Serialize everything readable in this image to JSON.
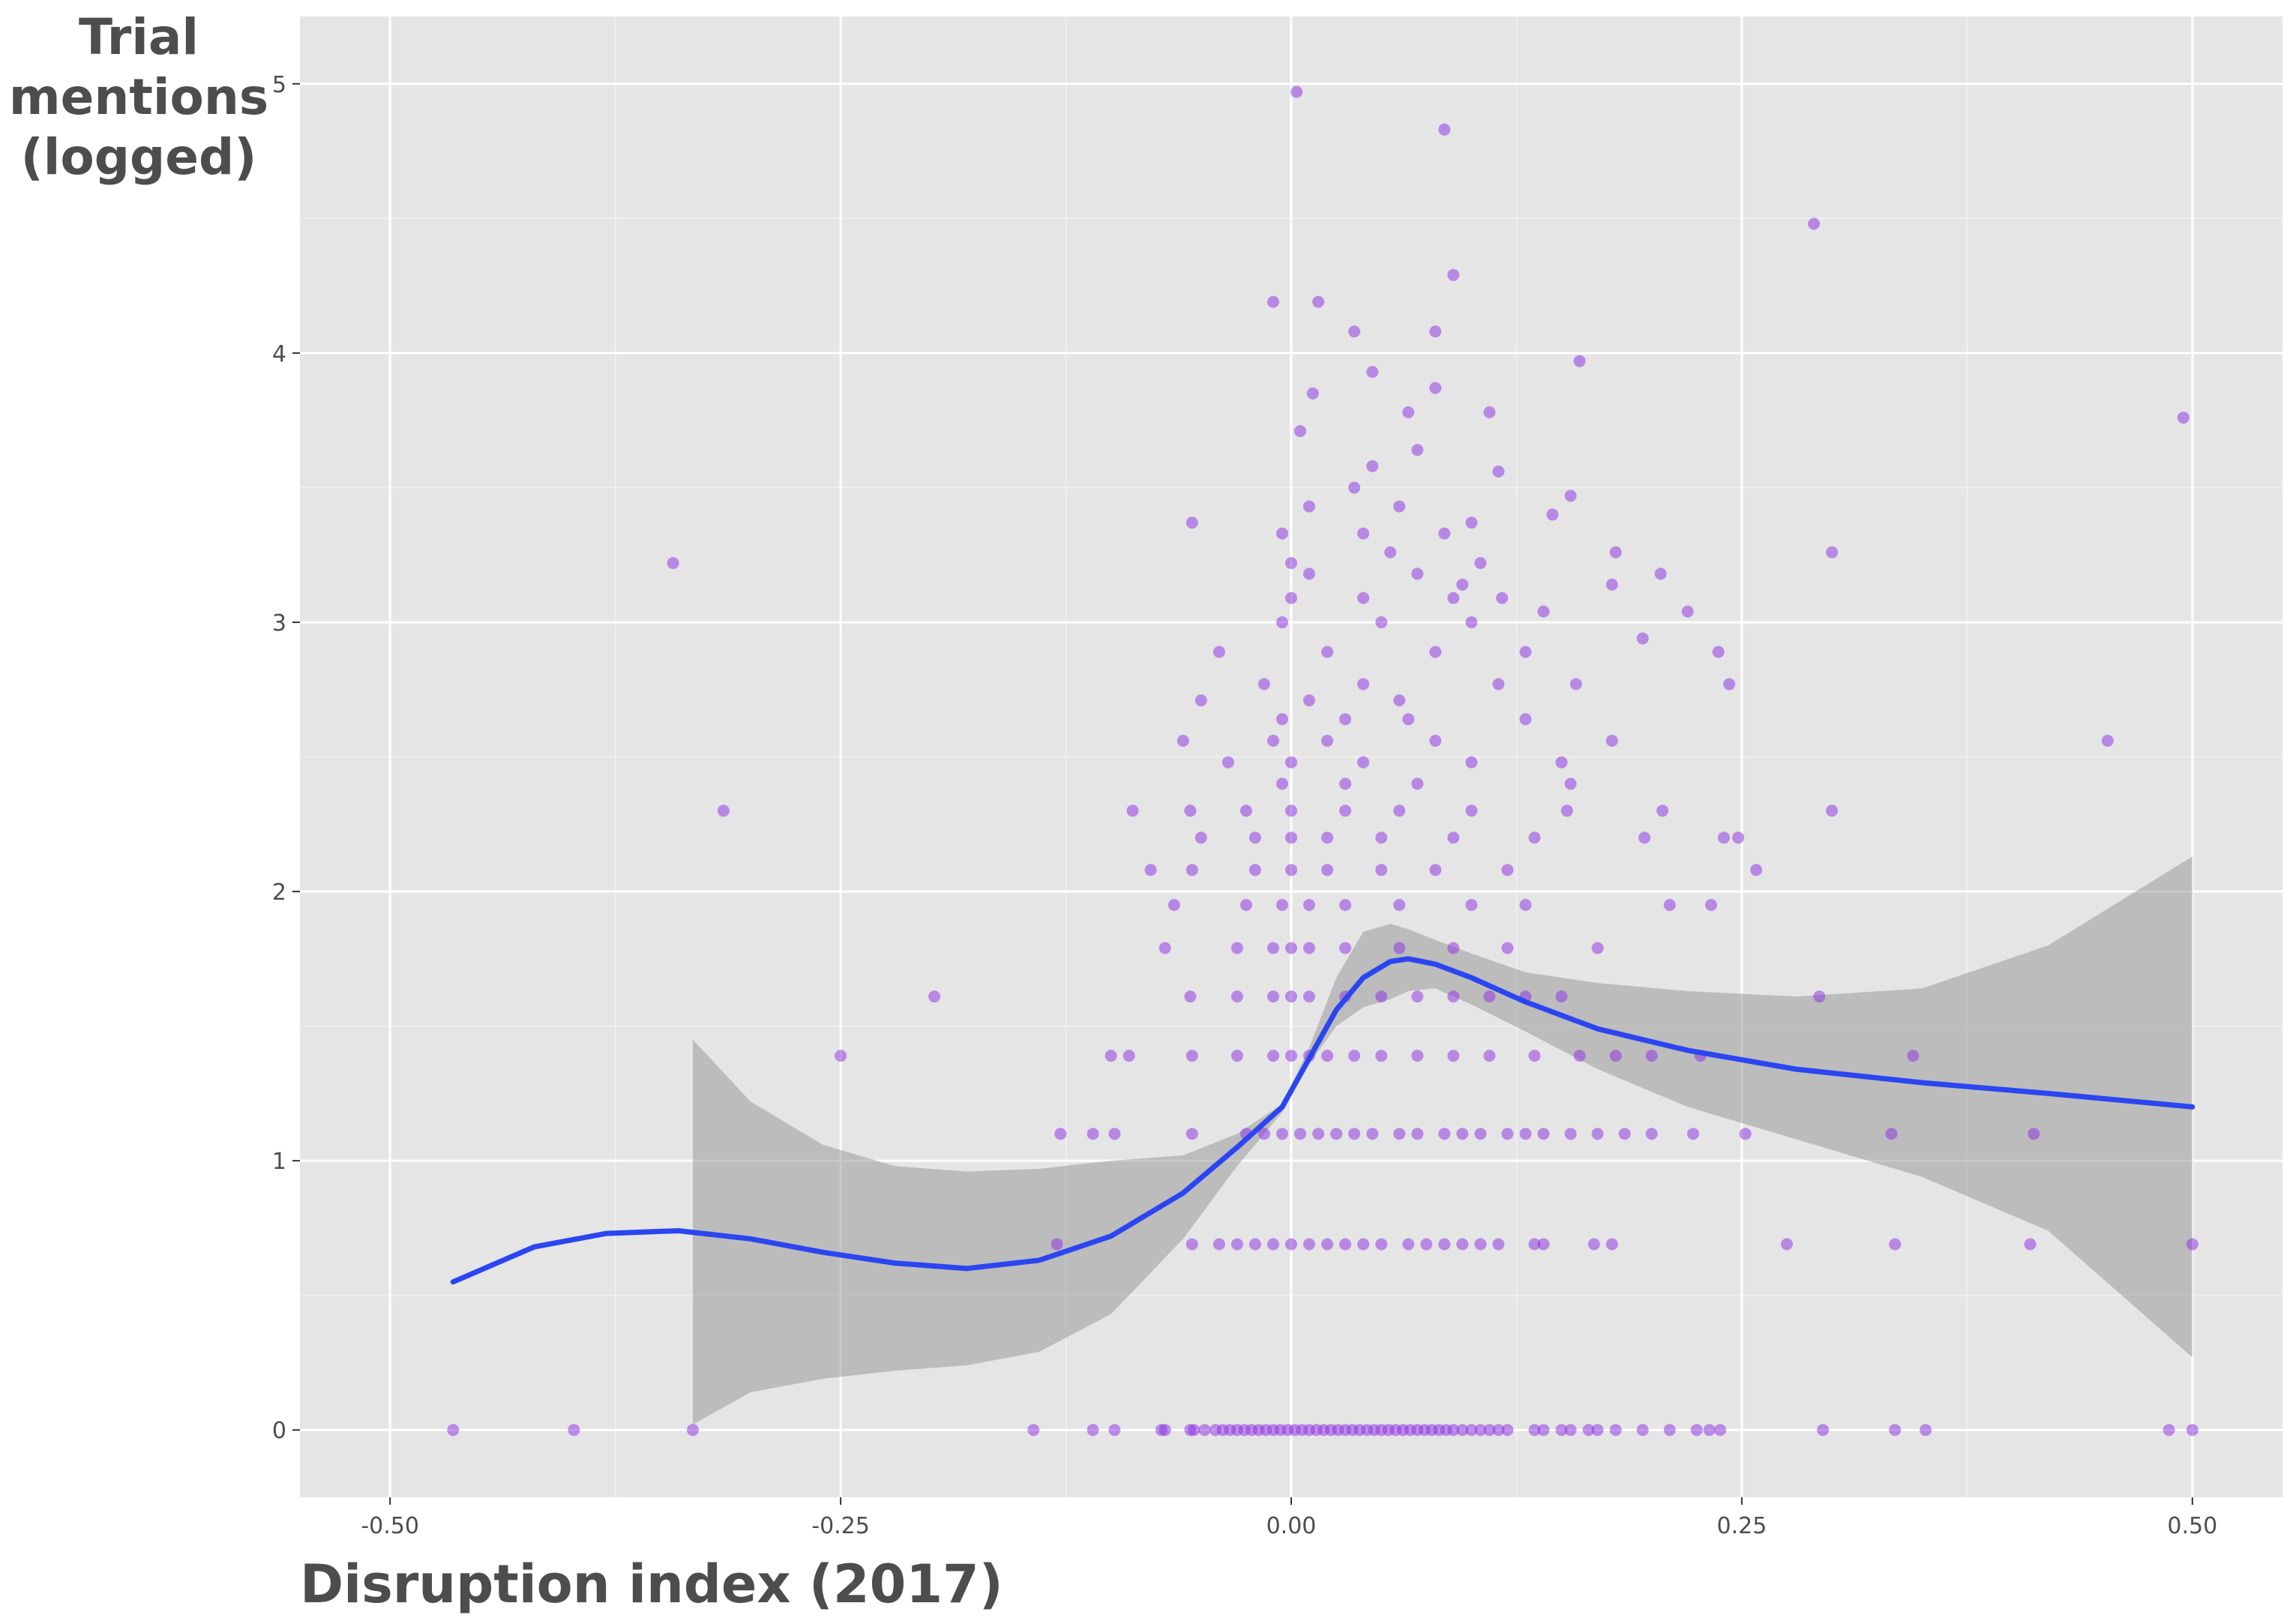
{
  "chart_data": {
    "type": "scatter",
    "title": "",
    "xlabel": "Disruption index (2017)",
    "ylabel_lines": [
      "Trial",
      "mentions",
      "(logged)"
    ],
    "xlim": [
      -0.55,
      0.55
    ],
    "ylim": [
      -0.25,
      5.25
    ],
    "x_ticks": [
      -0.5,
      -0.25,
      0.0,
      0.25,
      0.5
    ],
    "x_tick_labels": [
      "-0.50",
      "-0.25",
      "0.00",
      "0.25",
      "0.50"
    ],
    "y_ticks": [
      0,
      1,
      2,
      3,
      4,
      5
    ],
    "y_tick_labels": [
      "0",
      "1",
      "2",
      "3",
      "4",
      "5"
    ],
    "grid": true,
    "point_color": "#8a2be2",
    "smooth_color": "#2b45f0",
    "band_color": "#9a9a9a",
    "panel_color": "#e5e5e5",
    "points": [
      [
        -0.465,
        0
      ],
      [
        -0.398,
        0
      ],
      [
        -0.332,
        0
      ],
      [
        -0.143,
        0
      ],
      [
        -0.11,
        0
      ],
      [
        -0.098,
        0
      ],
      [
        -0.072,
        0
      ],
      [
        -0.07,
        0
      ],
      [
        -0.056,
        0
      ],
      [
        -0.054,
        0
      ],
      [
        -0.048,
        0
      ],
      [
        -0.042,
        0
      ],
      [
        -0.038,
        0
      ],
      [
        -0.034,
        0
      ],
      [
        -0.03,
        0
      ],
      [
        -0.026,
        0
      ],
      [
        -0.022,
        0
      ],
      [
        -0.018,
        0
      ],
      [
        -0.014,
        0
      ],
      [
        -0.01,
        0
      ],
      [
        -0.006,
        0
      ],
      [
        -0.002,
        0
      ],
      [
        0.002,
        0
      ],
      [
        0.006,
        0
      ],
      [
        0.01,
        0
      ],
      [
        0.014,
        0
      ],
      [
        0.018,
        0
      ],
      [
        0.022,
        0
      ],
      [
        0.026,
        0
      ],
      [
        0.03,
        0
      ],
      [
        0.034,
        0
      ],
      [
        0.038,
        0
      ],
      [
        0.042,
        0
      ],
      [
        0.046,
        0
      ],
      [
        0.05,
        0
      ],
      [
        0.054,
        0
      ],
      [
        0.058,
        0
      ],
      [
        0.062,
        0
      ],
      [
        0.066,
        0
      ],
      [
        0.07,
        0
      ],
      [
        0.074,
        0
      ],
      [
        0.078,
        0
      ],
      [
        0.082,
        0
      ],
      [
        0.086,
        0
      ],
      [
        0.09,
        0
      ],
      [
        0.095,
        0
      ],
      [
        0.1,
        0
      ],
      [
        0.105,
        0
      ],
      [
        0.11,
        0
      ],
      [
        0.115,
        0
      ],
      [
        0.12,
        0
      ],
      [
        0.135,
        0
      ],
      [
        0.14,
        0
      ],
      [
        0.15,
        0
      ],
      [
        0.155,
        0
      ],
      [
        0.165,
        0
      ],
      [
        0.17,
        0
      ],
      [
        0.18,
        0
      ],
      [
        0.195,
        0
      ],
      [
        0.21,
        0
      ],
      [
        0.225,
        0
      ],
      [
        0.232,
        0
      ],
      [
        0.238,
        0
      ],
      [
        0.295,
        0
      ],
      [
        0.335,
        0
      ],
      [
        0.352,
        0
      ],
      [
        0.487,
        0
      ],
      [
        0.5,
        0
      ],
      [
        -0.13,
        0.69
      ],
      [
        -0.055,
        0.69
      ],
      [
        -0.04,
        0.69
      ],
      [
        -0.03,
        0.69
      ],
      [
        -0.02,
        0.69
      ],
      [
        -0.01,
        0.69
      ],
      [
        0,
        0.69
      ],
      [
        0.01,
        0.69
      ],
      [
        0.02,
        0.69
      ],
      [
        0.03,
        0.69
      ],
      [
        0.04,
        0.69
      ],
      [
        0.05,
        0.69
      ],
      [
        0.065,
        0.69
      ],
      [
        0.075,
        0.69
      ],
      [
        0.085,
        0.69
      ],
      [
        0.095,
        0.69
      ],
      [
        0.105,
        0.69
      ],
      [
        0.115,
        0.69
      ],
      [
        0.135,
        0.69
      ],
      [
        0.14,
        0.69
      ],
      [
        0.168,
        0.69
      ],
      [
        0.178,
        0.69
      ],
      [
        0.275,
        0.69
      ],
      [
        0.335,
        0.69
      ],
      [
        0.41,
        0.69
      ],
      [
        0.5,
        0.69
      ],
      [
        -0.128,
        1.1
      ],
      [
        -0.11,
        1.1
      ],
      [
        -0.098,
        1.1
      ],
      [
        -0.055,
        1.1
      ],
      [
        -0.025,
        1.1
      ],
      [
        -0.015,
        1.1
      ],
      [
        -0.005,
        1.1
      ],
      [
        0.005,
        1.1
      ],
      [
        0.015,
        1.1
      ],
      [
        0.025,
        1.1
      ],
      [
        0.035,
        1.1
      ],
      [
        0.045,
        1.1
      ],
      [
        0.06,
        1.1
      ],
      [
        0.07,
        1.1
      ],
      [
        0.085,
        1.1
      ],
      [
        0.095,
        1.1
      ],
      [
        0.105,
        1.1
      ],
      [
        0.12,
        1.1
      ],
      [
        0.13,
        1.1
      ],
      [
        0.14,
        1.1
      ],
      [
        0.155,
        1.1
      ],
      [
        0.17,
        1.1
      ],
      [
        0.185,
        1.1
      ],
      [
        0.2,
        1.1
      ],
      [
        0.223,
        1.1
      ],
      [
        0.252,
        1.1
      ],
      [
        0.333,
        1.1
      ],
      [
        0.412,
        1.1
      ],
      [
        -0.1,
        1.39
      ],
      [
        -0.09,
        1.39
      ],
      [
        -0.055,
        1.39
      ],
      [
        -0.03,
        1.39
      ],
      [
        -0.01,
        1.39
      ],
      [
        0,
        1.39
      ],
      [
        0.01,
        1.39
      ],
      [
        0.02,
        1.39
      ],
      [
        0.035,
        1.39
      ],
      [
        0.05,
        1.39
      ],
      [
        0.07,
        1.39
      ],
      [
        0.09,
        1.39
      ],
      [
        0.11,
        1.39
      ],
      [
        0.135,
        1.39
      ],
      [
        0.16,
        1.39
      ],
      [
        0.18,
        1.39
      ],
      [
        0.2,
        1.39
      ],
      [
        0.227,
        1.39
      ],
      [
        0.345,
        1.39
      ],
      [
        -0.25,
        1.39
      ],
      [
        -0.198,
        1.61
      ],
      [
        -0.056,
        1.61
      ],
      [
        -0.03,
        1.61
      ],
      [
        -0.01,
        1.61
      ],
      [
        0,
        1.61
      ],
      [
        0.01,
        1.61
      ],
      [
        0.03,
        1.61
      ],
      [
        0.05,
        1.61
      ],
      [
        0.07,
        1.61
      ],
      [
        0.09,
        1.61
      ],
      [
        0.11,
        1.61
      ],
      [
        0.13,
        1.61
      ],
      [
        0.15,
        1.61
      ],
      [
        0.293,
        1.61
      ],
      [
        -0.07,
        1.79
      ],
      [
        -0.03,
        1.79
      ],
      [
        -0.01,
        1.79
      ],
      [
        0,
        1.79
      ],
      [
        0.01,
        1.79
      ],
      [
        0.03,
        1.79
      ],
      [
        0.06,
        1.79
      ],
      [
        0.09,
        1.79
      ],
      [
        0.12,
        1.79
      ],
      [
        0.17,
        1.79
      ],
      [
        -0.065,
        1.95
      ],
      [
        -0.025,
        1.95
      ],
      [
        -0.005,
        1.95
      ],
      [
        0.01,
        1.95
      ],
      [
        0.03,
        1.95
      ],
      [
        0.06,
        1.95
      ],
      [
        0.1,
        1.95
      ],
      [
        0.13,
        1.95
      ],
      [
        0.21,
        1.95
      ],
      [
        0.233,
        1.95
      ],
      [
        -0.078,
        2.08
      ],
      [
        -0.055,
        2.08
      ],
      [
        -0.02,
        2.08
      ],
      [
        0,
        2.08
      ],
      [
        0.02,
        2.08
      ],
      [
        0.05,
        2.08
      ],
      [
        0.08,
        2.08
      ],
      [
        0.12,
        2.08
      ],
      [
        0.258,
        2.08
      ],
      [
        -0.05,
        2.2
      ],
      [
        -0.02,
        2.2
      ],
      [
        0,
        2.2
      ],
      [
        0.02,
        2.2
      ],
      [
        0.05,
        2.2
      ],
      [
        0.09,
        2.2
      ],
      [
        0.135,
        2.2
      ],
      [
        0.196,
        2.2
      ],
      [
        0.24,
        2.2
      ],
      [
        0.248,
        2.2
      ],
      [
        -0.315,
        2.3
      ],
      [
        -0.088,
        2.3
      ],
      [
        -0.056,
        2.3
      ],
      [
        -0.025,
        2.3
      ],
      [
        0,
        2.3
      ],
      [
        0.03,
        2.3
      ],
      [
        0.06,
        2.3
      ],
      [
        0.1,
        2.3
      ],
      [
        0.153,
        2.3
      ],
      [
        0.206,
        2.3
      ],
      [
        0.3,
        2.3
      ],
      [
        -0.005,
        2.4
      ],
      [
        0.03,
        2.4
      ],
      [
        0.07,
        2.4
      ],
      [
        0.155,
        2.4
      ],
      [
        -0.035,
        2.48
      ],
      [
        0,
        2.48
      ],
      [
        0.04,
        2.48
      ],
      [
        0.1,
        2.48
      ],
      [
        0.15,
        2.48
      ],
      [
        -0.06,
        2.56
      ],
      [
        -0.01,
        2.56
      ],
      [
        0.02,
        2.56
      ],
      [
        0.08,
        2.56
      ],
      [
        0.178,
        2.56
      ],
      [
        0.453,
        2.56
      ],
      [
        -0.005,
        2.64
      ],
      [
        0.03,
        2.64
      ],
      [
        0.065,
        2.64
      ],
      [
        0.13,
        2.64
      ],
      [
        -0.05,
        2.71
      ],
      [
        0.01,
        2.71
      ],
      [
        0.06,
        2.71
      ],
      [
        -0.015,
        2.77
      ],
      [
        0.04,
        2.77
      ],
      [
        0.115,
        2.77
      ],
      [
        0.158,
        2.77
      ],
      [
        0.243,
        2.77
      ],
      [
        -0.04,
        2.89
      ],
      [
        0.02,
        2.89
      ],
      [
        0.08,
        2.89
      ],
      [
        0.13,
        2.89
      ],
      [
        0.237,
        2.89
      ],
      [
        -0.005,
        3.0
      ],
      [
        0.05,
        3.0
      ],
      [
        0.1,
        3.0
      ],
      [
        0.195,
        2.94
      ],
      [
        0.0,
        3.09
      ],
      [
        0.04,
        3.09
      ],
      [
        0.09,
        3.09
      ],
      [
        0.117,
        3.09
      ],
      [
        0.14,
        3.04
      ],
      [
        0.22,
        3.04
      ],
      [
        0.01,
        3.18
      ],
      [
        0.07,
        3.18
      ],
      [
        0.178,
        3.14
      ],
      [
        0.205,
        3.18
      ],
      [
        0.095,
        3.14
      ],
      [
        -0.343,
        3.22
      ],
      [
        0.0,
        3.22
      ],
      [
        0.055,
        3.26
      ],
      [
        0.105,
        3.22
      ],
      [
        0.18,
        3.26
      ],
      [
        0.3,
        3.26
      ],
      [
        -0.005,
        3.33
      ],
      [
        0.04,
        3.33
      ],
      [
        0.085,
        3.33
      ],
      [
        0.1,
        3.37
      ],
      [
        0.01,
        3.43
      ],
      [
        0.06,
        3.43
      ],
      [
        0.145,
        3.4
      ],
      [
        -0.055,
        3.37
      ],
      [
        0.035,
        3.5
      ],
      [
        0.155,
        3.47
      ],
      [
        0.045,
        3.58
      ],
      [
        0.115,
        3.56
      ],
      [
        0.07,
        3.64
      ],
      [
        0.005,
        3.71
      ],
      [
        0.065,
        3.78
      ],
      [
        0.11,
        3.78
      ],
      [
        0.012,
        3.85
      ],
      [
        0.08,
        3.87
      ],
      [
        0.045,
        3.93
      ],
      [
        0.16,
        3.97
      ],
      [
        0.035,
        4.08
      ],
      [
        0.08,
        4.08
      ],
      [
        -0.01,
        4.19
      ],
      [
        0.015,
        4.19
      ],
      [
        0.09,
        4.29
      ],
      [
        0.29,
        4.48
      ],
      [
        0.495,
        3.76
      ],
      [
        0.085,
        4.83
      ],
      [
        0.003,
        4.97
      ]
    ],
    "smooth": {
      "x": [
        -0.465,
        -0.42,
        -0.38,
        -0.34,
        -0.3,
        -0.26,
        -0.22,
        -0.18,
        -0.14,
        -0.1,
        -0.06,
        -0.03,
        -0.005,
        0.01,
        0.025,
        0.04,
        0.055,
        0.065,
        0.08,
        0.1,
        0.13,
        0.17,
        0.22,
        0.28,
        0.35,
        0.42,
        0.5
      ],
      "y": [
        0.55,
        0.68,
        0.73,
        0.74,
        0.71,
        0.66,
        0.62,
        0.6,
        0.63,
        0.72,
        0.88,
        1.05,
        1.2,
        1.38,
        1.56,
        1.68,
        1.74,
        1.75,
        1.73,
        1.68,
        1.59,
        1.49,
        1.41,
        1.34,
        1.29,
        1.25,
        1.2
      ]
    },
    "band": {
      "x": [
        -0.332,
        -0.3,
        -0.26,
        -0.22,
        -0.18,
        -0.14,
        -0.1,
        -0.06,
        -0.03,
        -0.005,
        0.01,
        0.025,
        0.04,
        0.055,
        0.065,
        0.08,
        0.1,
        0.13,
        0.17,
        0.22,
        0.28,
        0.35,
        0.42,
        0.5
      ],
      "upper": [
        1.45,
        1.22,
        1.06,
        0.98,
        0.96,
        0.97,
        1.0,
        1.02,
        1.1,
        1.21,
        1.42,
        1.68,
        1.85,
        1.88,
        1.86,
        1.82,
        1.77,
        1.7,
        1.66,
        1.63,
        1.61,
        1.64,
        1.8,
        2.13
      ],
      "lower": [
        0.02,
        0.14,
        0.19,
        0.22,
        0.24,
        0.29,
        0.43,
        0.71,
        0.98,
        1.18,
        1.36,
        1.5,
        1.57,
        1.6,
        1.63,
        1.64,
        1.58,
        1.48,
        1.34,
        1.2,
        1.08,
        0.94,
        0.74,
        0.27
      ]
    }
  }
}
